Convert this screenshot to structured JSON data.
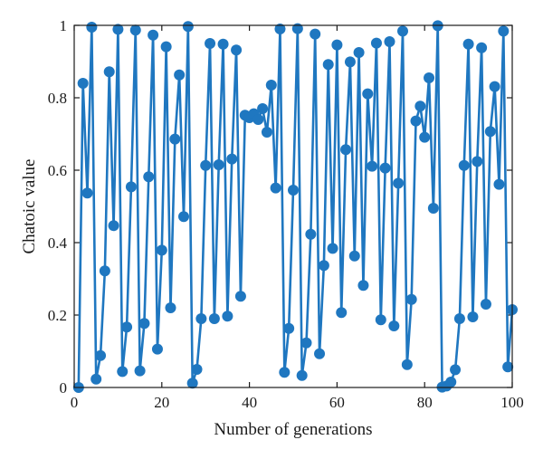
{
  "chart_data": {
    "type": "line",
    "title": "",
    "xlabel": "Number of generations",
    "ylabel": "Chatoic value",
    "xlim": [
      0,
      100
    ],
    "ylim": [
      0,
      1
    ],
    "grid": false,
    "x_ticks": [
      "0",
      "20",
      "40",
      "60",
      "80",
      "100"
    ],
    "y_ticks": [
      "0",
      "0.2",
      "0.4",
      "0.6",
      "0.8",
      "1"
    ],
    "series": [
      {
        "color": "#1f77c0",
        "marker": "circle",
        "x": [
          1,
          2,
          3,
          4,
          5,
          6,
          7,
          8,
          9,
          10,
          11,
          12,
          13,
          14,
          15,
          16,
          17,
          18,
          19,
          20,
          21,
          22,
          23,
          24,
          25,
          26,
          27,
          28,
          29,
          30,
          31,
          32,
          33,
          34,
          35,
          36,
          37,
          38,
          39,
          40,
          41,
          42,
          43,
          44,
          45,
          46,
          47,
          48,
          49,
          50,
          51,
          52,
          53,
          54,
          55,
          56,
          57,
          58,
          59,
          60,
          61,
          62,
          63,
          64,
          65,
          66,
          67,
          68,
          69,
          70,
          71,
          72,
          73,
          74,
          75,
          76,
          77,
          78,
          79,
          80,
          81,
          82,
          83,
          84,
          85,
          86,
          87,
          88,
          89,
          90,
          91,
          92,
          93,
          94,
          95,
          96,
          97,
          98,
          99,
          100
        ],
        "y": [
          0.0,
          0.84,
          0.537,
          0.995,
          0.023,
          0.088,
          0.322,
          0.872,
          0.447,
          0.989,
          0.044,
          0.167,
          0.554,
          0.987,
          0.046,
          0.177,
          0.582,
          0.973,
          0.106,
          0.379,
          0.941,
          0.22,
          0.686,
          0.863,
          0.472,
          0.997,
          0.012,
          0.05,
          0.19,
          0.613,
          0.95,
          0.19,
          0.615,
          0.948,
          0.197,
          0.631,
          0.932,
          0.252,
          0.752,
          0.745,
          0.756,
          0.74,
          0.77,
          0.705,
          0.835,
          0.551,
          0.99,
          0.042,
          0.163,
          0.545,
          0.991,
          0.033,
          0.123,
          0.423,
          0.976,
          0.093,
          0.337,
          0.892,
          0.384,
          0.946,
          0.207,
          0.657,
          0.899,
          0.363,
          0.925,
          0.282,
          0.811,
          0.611,
          0.951,
          0.187,
          0.606,
          0.955,
          0.17,
          0.564,
          0.984,
          0.063,
          0.243,
          0.736,
          0.777,
          0.691,
          0.855,
          0.495,
          0.999,
          0.001,
          0.004,
          0.015,
          0.049,
          0.19,
          0.613,
          0.948,
          0.195,
          0.624,
          0.938,
          0.23,
          0.707,
          0.831,
          0.561,
          0.984,
          0.057,
          0.215
        ]
      }
    ]
  }
}
